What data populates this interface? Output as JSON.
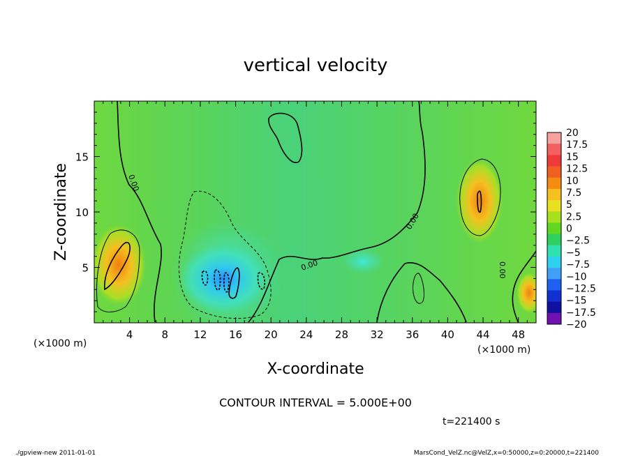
{
  "chart_data": {
    "type": "heatmap",
    "title": "vertical velocity",
    "xlabel": "X-coordinate",
    "ylabel": "Z-coordinate",
    "x_unit": "(×1000 m)",
    "y_unit": "(×1000 m)",
    "xlim": [
      0,
      50
    ],
    "ylim": [
      0,
      20
    ],
    "xticks": [
      4,
      8,
      12,
      16,
      20,
      24,
      28,
      32,
      36,
      40,
      44,
      48
    ],
    "yticks": [
      5,
      10,
      15
    ],
    "contour_interval_label": "CONTOUR INTERVAL = 5.000E+00",
    "contour_line_labels": [
      "0.00",
      "0.00",
      "0.00",
      "0.00"
    ],
    "time_label": "t=221400  s",
    "colorbar": {
      "levels": [
        20,
        17.5,
        15,
        12.5,
        10,
        7.5,
        5,
        2.5,
        0,
        -2.5,
        -5,
        -7.5,
        -10,
        -12.5,
        -15,
        -17.5,
        -20
      ],
      "colors": [
        "#f7a0a0",
        "#f26060",
        "#f03a3a",
        "#f06020",
        "#f58c10",
        "#f5c020",
        "#e8e020",
        "#a8e020",
        "#60d820",
        "#30d060",
        "#30e0b0",
        "#30d0f0",
        "#40a0f8",
        "#2060f0",
        "#1030d0",
        "#1010a0",
        "#7010b0"
      ]
    },
    "footer_left": "./gpview-new   2011-01-01",
    "footer_right": "MarsCond_VelZ.nc@VelZ,x=0:50000,z=0:20000,t=221400"
  }
}
